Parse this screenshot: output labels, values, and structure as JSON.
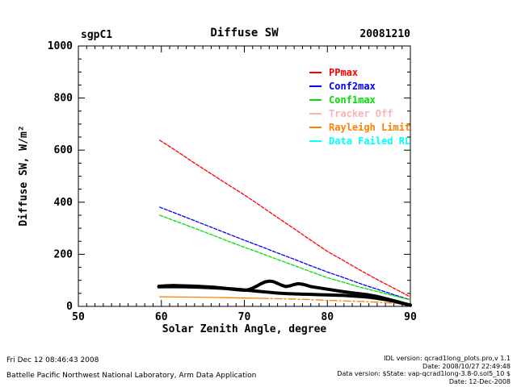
{
  "header": {
    "site": "sgpC1",
    "title": "Diffuse SW",
    "date": "20081210"
  },
  "axes": {
    "x": {
      "label": "Solar Zenith Angle, degree",
      "min": 50,
      "max": 90,
      "major_ticks": [
        50,
        60,
        70,
        80,
        90
      ],
      "minor_step": 1
    },
    "y": {
      "label": "Diffuse SW, W/m²",
      "min": 0,
      "max": 1000,
      "major_ticks": [
        0,
        200,
        400,
        600,
        800,
        1000
      ],
      "minor_step": 50
    }
  },
  "legend": {
    "items": [
      {
        "label": "PPmax",
        "color": "#ff0000"
      },
      {
        "label": "Conf2max",
        "color": "#0000ff"
      },
      {
        "label": "Conf1max",
        "color": "#00e000"
      },
      {
        "label": "Tracker Off",
        "color": "#ffb0b0"
      },
      {
        "label": "Rayleigh Limit",
        "color": "#ff8000"
      },
      {
        "label": "Data Failed RL",
        "color": "#00ffff"
      }
    ]
  },
  "footer": {
    "left": [
      "Fri Dec 12 08:46:43 2008",
      "Battelle Pacific Northwest National Laboratory, Arm Data Application"
    ],
    "right": [
      "IDL version: qcrad1long_plots.pro,v 1.1",
      "Date: 2008/10/27 22:49:48",
      "Data version: $State: vap-qcrad1long-3.8-0.sol5_10 $",
      "Date: 12-Dec-2008"
    ]
  },
  "chart_data": {
    "type": "line",
    "title": "Diffuse SW",
    "xlabel": "Solar Zenith Angle, degree",
    "ylabel": "Diffuse SW, W/m²",
    "xlim": [
      50,
      90
    ],
    "ylim": [
      0,
      1000
    ],
    "grid": false,
    "legend_position": "upper right inside",
    "series": [
      {
        "name": "PPmax",
        "color": "#ff0000",
        "style": "dashed",
        "width": 1.3,
        "x": [
          59.8,
          62,
          64,
          66,
          68,
          70,
          72,
          74,
          76,
          78,
          80,
          82,
          84,
          86,
          88,
          90
        ],
        "y": [
          638,
          593,
          550,
          509,
          468,
          428,
          385,
          341,
          298,
          254,
          211,
          175,
          138,
          103,
          70,
          36
        ]
      },
      {
        "name": "Conf2max",
        "color": "#0000ff",
        "style": "dashed",
        "width": 1.3,
        "x": [
          59.8,
          62,
          64,
          66,
          68,
          70,
          72,
          74,
          76,
          78,
          80,
          82,
          84,
          86,
          88,
          90
        ],
        "y": [
          381,
          354,
          329,
          304,
          279,
          254,
          230,
          205,
          181,
          156,
          132,
          110,
          87,
          66,
          45,
          25
        ]
      },
      {
        "name": "Conf1max",
        "color": "#00e000",
        "style": "dashed",
        "width": 1.3,
        "x": [
          59.8,
          62,
          64,
          66,
          68,
          70,
          72,
          74,
          76,
          78,
          80,
          82,
          84,
          86,
          88,
          90
        ],
        "y": [
          350,
          324,
          300,
          276,
          251,
          227,
          204,
          180,
          157,
          133,
          110,
          92,
          73,
          57,
          41,
          25
        ]
      },
      {
        "name": "Rayleigh Limit",
        "color": "#ff8000",
        "style": "dashdot",
        "width": 1.3,
        "solid_until": 70,
        "x": [
          59.8,
          62,
          64,
          66,
          68,
          70,
          72,
          74,
          76,
          78,
          80,
          82,
          84,
          86,
          88,
          90
        ],
        "y": [
          37,
          36,
          35.5,
          34.5,
          33.5,
          32,
          31,
          29.5,
          28,
          26,
          23,
          21,
          19,
          16,
          12,
          8
        ]
      },
      {
        "name": "Diffuse SW measured branch 1",
        "color": "#000000",
        "style": "solid",
        "width": 4,
        "x": [
          59.7,
          60.5,
          61.5,
          62.5,
          63.5,
          64.5,
          65.5,
          66.5,
          67.5,
          68.5,
          69.5,
          70,
          70.5,
          71,
          71.5,
          72,
          72.5,
          73,
          73.5,
          74,
          74.5,
          75,
          75.5,
          76,
          76.5,
          77,
          77.5,
          78,
          79,
          80,
          81,
          82,
          83,
          84,
          85,
          86,
          87,
          88,
          89,
          90
        ],
        "y": [
          77,
          79,
          80,
          79,
          78,
          77,
          75,
          73,
          70,
          66,
          63,
          62,
          64,
          70,
          78,
          87,
          94,
          97,
          95,
          88,
          81,
          76,
          79,
          84,
          87,
          85,
          81,
          76,
          71,
          66,
          61,
          56,
          52,
          48,
          44,
          38,
          30,
          22,
          13,
          5
        ]
      },
      {
        "name": "Diffuse SW measured branch 2",
        "color": "#000000",
        "style": "solid",
        "width": 4,
        "x": [
          59.7,
          61,
          63,
          65,
          67,
          69,
          70,
          71,
          72,
          73,
          74,
          75,
          76,
          77,
          78,
          79,
          80,
          81,
          82,
          83,
          84,
          85,
          86,
          87,
          88,
          89,
          90
        ],
        "y": [
          75,
          76,
          75,
          73,
          70,
          66,
          63,
          60,
          57,
          54,
          51,
          49,
          48,
          47,
          46,
          45,
          44,
          43,
          42,
          40,
          38,
          35,
          31,
          26,
          20,
          12,
          4
        ]
      }
    ]
  }
}
